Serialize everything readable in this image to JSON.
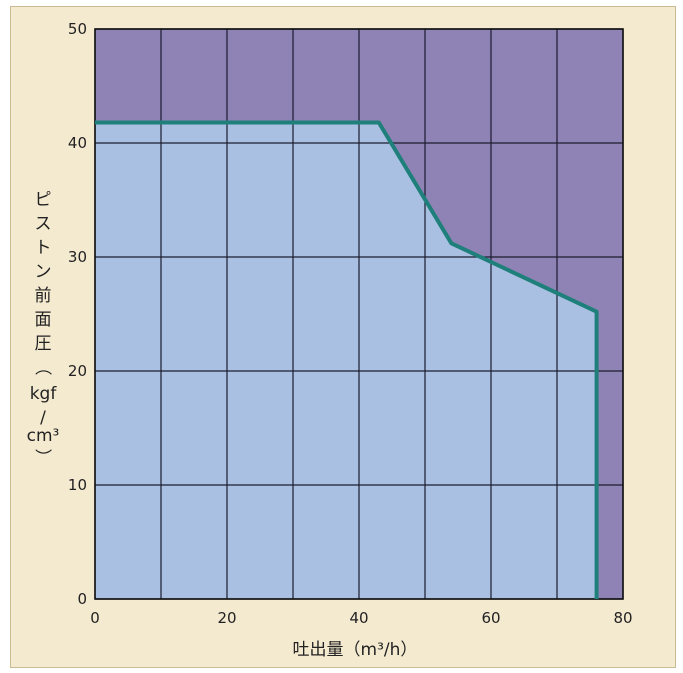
{
  "chart_data": {
    "type": "area",
    "title": "",
    "xlabel": "吐出量（m³/h）",
    "ylabel": [
      "ピ",
      "ス",
      "ト",
      "ン",
      "前",
      "面",
      "圧",
      "（",
      "kgf",
      "/",
      "cm³",
      "）"
    ],
    "xlim": [
      0,
      80
    ],
    "ylim": [
      0,
      50
    ],
    "x_ticks": [
      0,
      20,
      40,
      60,
      80
    ],
    "y_ticks": [
      0,
      10,
      20,
      30,
      40,
      50
    ],
    "x_grid": [
      0,
      10,
      20,
      30,
      40,
      50,
      60,
      70,
      80
    ],
    "y_grid": [
      0,
      10,
      20,
      30,
      40,
      50
    ],
    "grid": true,
    "series": [
      {
        "x": [
          0,
          43,
          54,
          76,
          76
        ],
        "y": [
          41.8,
          41.8,
          31.2,
          25.2,
          0
        ]
      }
    ],
    "colors": {
      "plot_bg": "#8f83b6",
      "fill": "#a9c0e3",
      "line": "#1f7f7a",
      "grid": "#1c1c2e"
    }
  }
}
